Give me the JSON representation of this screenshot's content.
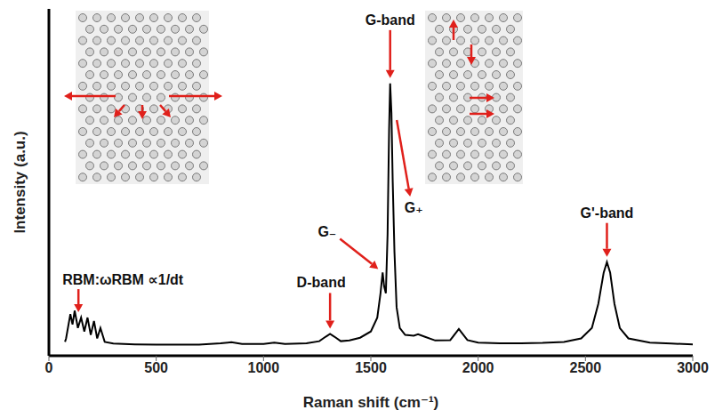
{
  "chart_data": {
    "type": "line",
    "xlabel": "Raman shift (cm⁻¹)",
    "ylabel": "Intensity (a.u.)",
    "x": [
      75,
      80,
      100,
      110,
      120,
      135,
      150,
      165,
      180,
      195,
      210,
      225,
      240,
      260,
      300,
      400,
      500,
      600,
      700,
      800,
      850,
      900,
      1000,
      1050,
      1100,
      1200,
      1260,
      1290,
      1310,
      1330,
      1360,
      1400,
      1450,
      1500,
      1530,
      1545,
      1555,
      1562,
      1570,
      1578,
      1585,
      1590,
      1596,
      1602,
      1610,
      1620,
      1635,
      1660,
      1700,
      1720,
      1750,
      1800,
      1870,
      1895,
      1910,
      1925,
      1950,
      2000,
      2100,
      2200,
      2300,
      2400,
      2480,
      2530,
      2560,
      2585,
      2600,
      2615,
      2635,
      2660,
      2700,
      2800,
      2900,
      3000
    ],
    "values": [
      4,
      5,
      12,
      9,
      13,
      8,
      11,
      7,
      11,
      6,
      10,
      5,
      8,
      4,
      3.5,
      3.3,
      3.2,
      3.2,
      3.2,
      3.6,
      3.9,
      3.4,
      3.4,
      3.8,
      3.4,
      3.6,
      4.2,
      5.5,
      6.3,
      5.5,
      4.2,
      4.4,
      5.2,
      7,
      11,
      18,
      24,
      20,
      18,
      35,
      65,
      78.5,
      70,
      50,
      30,
      14,
      8,
      6,
      5.8,
      6.2,
      5.5,
      4.4,
      4.5,
      6.5,
      7.7,
      6.5,
      4.5,
      3.8,
      3.6,
      3.6,
      3.7,
      4,
      5,
      8,
      15,
      24,
      27,
      24,
      15,
      8,
      5,
      3.8,
      3.5,
      3.3
    ],
    "color": "#000000",
    "xlim": [
      0,
      3000
    ],
    "xticks": [
      0,
      500,
      1000,
      1500,
      2000,
      2500,
      3000
    ],
    "ylim": [
      0,
      100
    ],
    "grid": false,
    "tick_labels": "x",
    "annotations": [
      {
        "text": "RBM:ωRBM ∝1/dt",
        "x": 150,
        "y": 11
      },
      {
        "text": "D-band",
        "x": 1310,
        "y": 6.3
      },
      {
        "text": "G₋",
        "x": 1555,
        "y": 24
      },
      {
        "text": "G-band",
        "x": 1590,
        "y": 78.5
      },
      {
        "text": "G₊",
        "x": 1596,
        "y": 70
      },
      {
        "text": "G'-band",
        "x": 2600,
        "y": 27
      }
    ]
  }
}
